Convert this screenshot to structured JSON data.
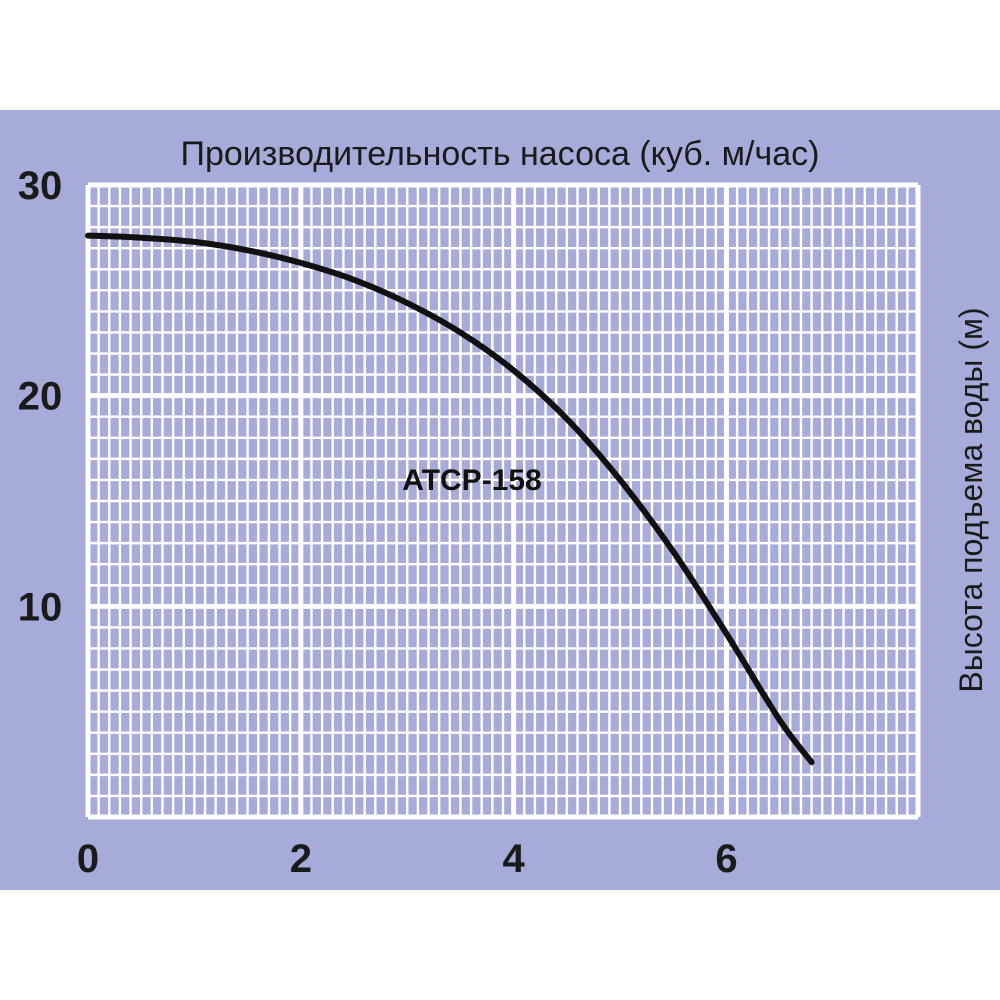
{
  "chart_data": {
    "type": "line",
    "title": "Производительность насоса (куб. м/час)",
    "ylabel": "Высота подъема воды (м)",
    "xlabel": "",
    "xlim": [
      0,
      7.8
    ],
    "ylim": [
      0,
      30
    ],
    "x_ticks": [
      "0",
      "2",
      "4",
      "6"
    ],
    "x_tick_values": [
      0,
      2,
      4,
      6
    ],
    "y_ticks": [
      "10",
      "20",
      "30"
    ],
    "y_tick_values": [
      10,
      20,
      30
    ],
    "grid": true,
    "series_label": "ATCP-158",
    "series": [
      {
        "name": "ATCP-158",
        "color": "#111111",
        "x": [
          0,
          0.5,
          1,
          1.5,
          2,
          2.5,
          3,
          3.5,
          4,
          4.5,
          5,
          5.5,
          6,
          6.5,
          6.8
        ],
        "y": [
          27.6,
          27.5,
          27.3,
          26.9,
          26.3,
          25.5,
          24.4,
          23.0,
          21.2,
          18.9,
          16.0,
          12.6,
          8.7,
          4.6,
          2.6
        ]
      }
    ],
    "colors": {
      "background": "#a6abd9",
      "grid": "#ffffff",
      "line": "#111111"
    }
  }
}
